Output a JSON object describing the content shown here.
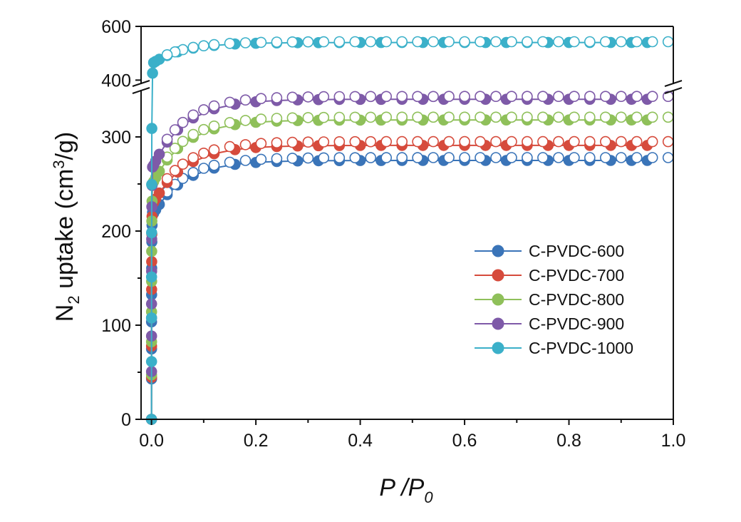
{
  "chart_data": {
    "type": "scatter",
    "xlabel": {
      "main": "P /P",
      "sub": "0"
    },
    "ylabel": {
      "lead": "N",
      "lead_sub": "2",
      "mid": " uptake (cm",
      "sup": "3",
      "tail": "/g)"
    },
    "xlim": [
      -0.02,
      1.0
    ],
    "x_ticks": [
      "0.0",
      "0.2",
      "0.4",
      "0.6",
      "0.8",
      "1.0"
    ],
    "y_lower_range": [
      0,
      350
    ],
    "y_upper_range": [
      385,
      600
    ],
    "y_ticks_lower": [
      "0",
      "100",
      "200",
      "300"
    ],
    "y_ticks_upper": [
      "400",
      "600"
    ],
    "axis_break": true,
    "legend_position": "lower-right",
    "marker_style": "filled circles = adsorption, open circles = desorption",
    "series": [
      {
        "name": "C-PVDC-600",
        "color": "#3a74b8",
        "plateau": 275,
        "y0": 245,
        "rise": 60,
        "branch_gap": 3
      },
      {
        "name": "C-PVDC-700",
        "color": "#d64b3c",
        "plateau": 291,
        "y0": 255,
        "rise": 65,
        "branch_gap": 4
      },
      {
        "name": "C-PVDC-800",
        "color": "#8fc05a",
        "plateau": 318,
        "y0": 270,
        "rise": 70,
        "branch_gap": 3
      },
      {
        "name": "C-PVDC-900",
        "color": "#7e5aa8",
        "plateau": 340,
        "y0": 290,
        "rise": 75,
        "branch_gap": 3
      },
      {
        "name": "C-PVDC-1000",
        "color": "#3bb0c9",
        "plateau": 540,
        "y0": 350,
        "rise": 80,
        "branch_gap": 3
      }
    ]
  }
}
